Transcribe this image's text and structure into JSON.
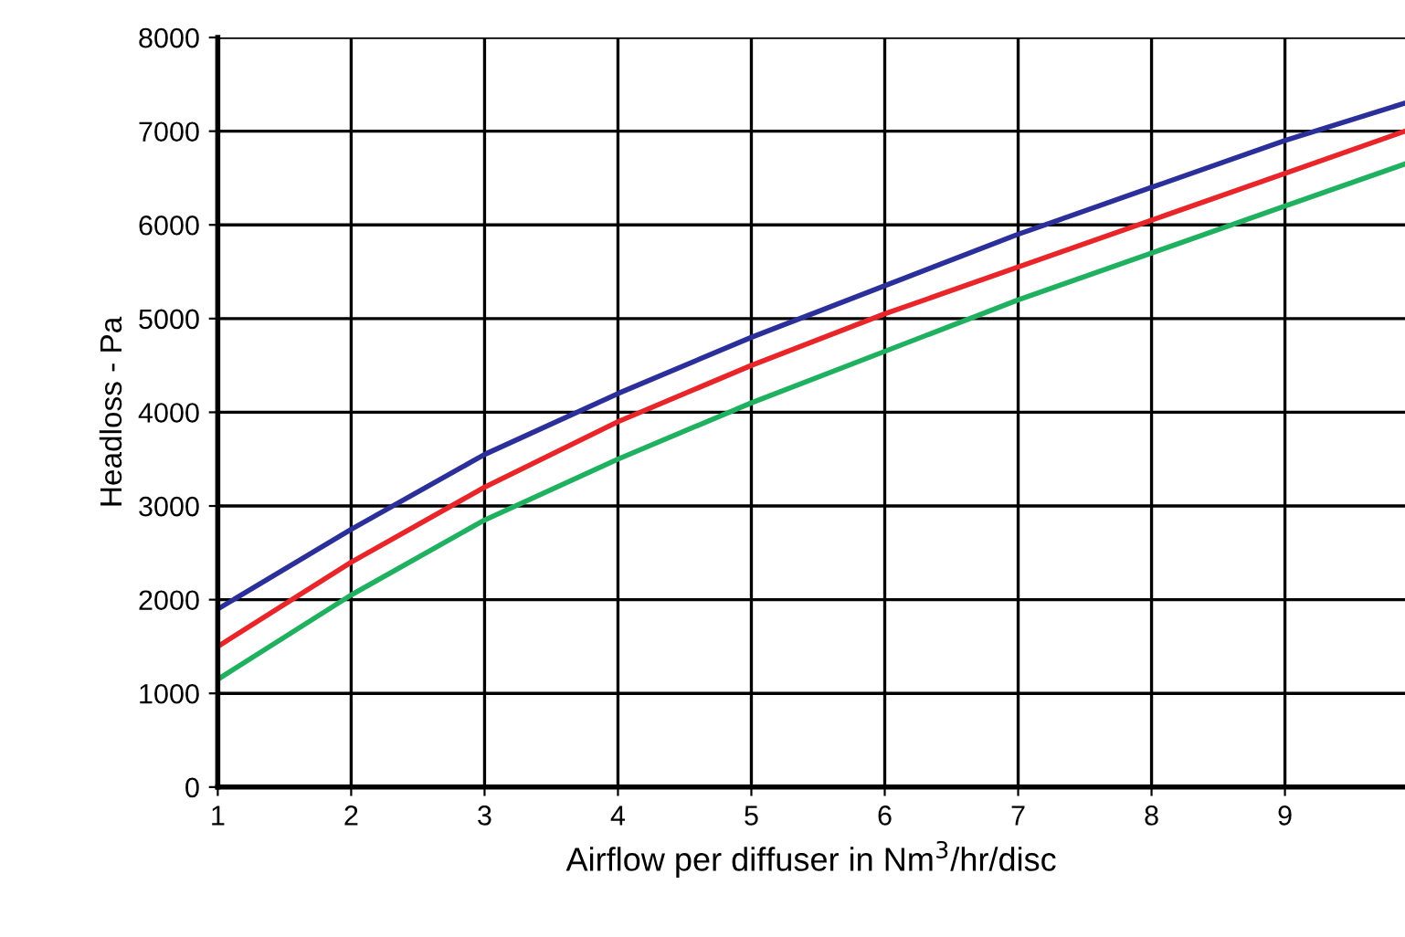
{
  "chart_data": {
    "type": "line",
    "xlabel": "Airflow per diffuser in Nm$^{3}$/hr/disc",
    "ylabel": "Headloss - Pa",
    "x": [
      1,
      2,
      3,
      4,
      5,
      6,
      7,
      8,
      9,
      9.9
    ],
    "series": [
      {
        "color": "#2b2f9a",
        "values": [
          1900,
          2750,
          3550,
          4200,
          4800,
          5350,
          5900,
          6400,
          6900,
          7300
        ]
      },
      {
        "color": "#e8262a",
        "values": [
          1500,
          2400,
          3200,
          3900,
          4500,
          5050,
          5550,
          6050,
          6550,
          7000
        ]
      },
      {
        "color": "#1fb060",
        "values": [
          1150,
          2050,
          2850,
          3500,
          4100,
          4650,
          5200,
          5700,
          6200,
          6650
        ]
      }
    ],
    "xlim": [
      1,
      9.9
    ],
    "xticks": [
      1,
      2,
      3,
      4,
      5,
      6,
      7,
      8,
      9
    ],
    "ylim": [
      0,
      8000
    ],
    "yticks": [
      0,
      1000,
      2000,
      3000,
      4000,
      5000,
      6000,
      7000,
      8000
    ],
    "grid": true,
    "marker": "none",
    "line_style": "solid"
  }
}
